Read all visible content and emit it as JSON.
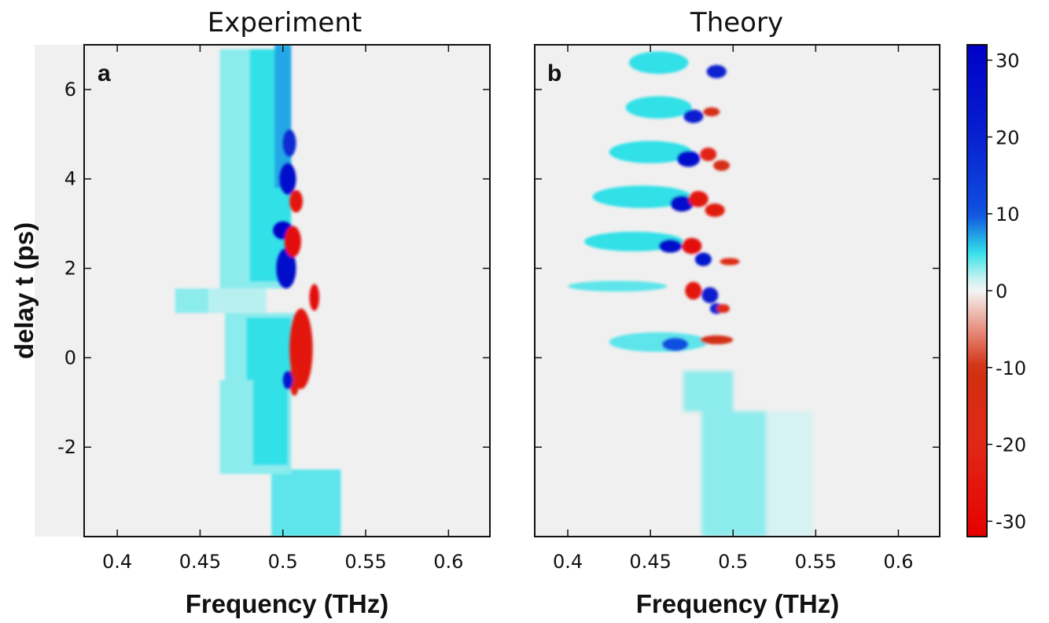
{
  "chart_data": {
    "type": "heatmap",
    "panels": [
      {
        "id": "a",
        "title": "Experiment",
        "panel_label": "a",
        "xlabel": "Frequency (THz)",
        "ylabel": "delay t (ps)",
        "xlim": [
          0.38,
          0.625
        ],
        "ylim": [
          -4,
          7
        ],
        "xticks": [
          0.4,
          0.45,
          0.5,
          0.55,
          0.6
        ],
        "xtick_labels": [
          "0.4",
          "0.45",
          "0.5",
          "0.55",
          "0.6"
        ],
        "yticks": [
          -2,
          0,
          2,
          4,
          6
        ],
        "ytick_labels": [
          "-2",
          "0",
          "2",
          "4",
          "6"
        ],
        "regions": [
          {
            "t0": -4,
            "t1": -2.7,
            "f0": 0.493,
            "f1": 0.535,
            "v": 4
          },
          {
            "t0": -2.7,
            "t1": -2.5,
            "f0": 0.493,
            "f1": 0.535,
            "v": 4
          },
          {
            "t0": -2.6,
            "t1": -0.5,
            "f0": 0.462,
            "f1": 0.505,
            "v": 3
          },
          {
            "t0": -2.4,
            "t1": -0.5,
            "f0": 0.482,
            "f1": 0.503,
            "v": 5
          },
          {
            "t0": -0.5,
            "t1": 1.0,
            "f0": 0.465,
            "f1": 0.51,
            "v": 3
          },
          {
            "t0": -0.5,
            "t1": 0.9,
            "f0": 0.478,
            "f1": 0.505,
            "v": 5
          },
          {
            "t0": 1.0,
            "t1": 1.55,
            "f0": 0.435,
            "f1": 0.455,
            "v": 3
          },
          {
            "t0": 1.0,
            "t1": 1.55,
            "f0": 0.455,
            "f1": 0.49,
            "v": 2
          },
          {
            "t0": 1.55,
            "t1": 6.9,
            "f0": 0.462,
            "f1": 0.5,
            "v": 3
          },
          {
            "t0": 1.7,
            "t1": 6.9,
            "f0": 0.48,
            "f1": 0.505,
            "v": 5
          },
          {
            "t0": 3.8,
            "t1": 7.0,
            "f0": 0.495,
            "f1": 0.505,
            "v": 7
          }
        ],
        "blobs": [
          {
            "f": 0.502,
            "t": 2.0,
            "rf": 0.006,
            "rt": 0.45,
            "v": 28
          },
          {
            "f": 0.5,
            "t": 2.85,
            "rf": 0.006,
            "rt": 0.2,
            "v": 30
          },
          {
            "f": 0.503,
            "t": 4.0,
            "rf": 0.005,
            "rt": 0.35,
            "v": 26
          },
          {
            "f": 0.504,
            "t": 4.8,
            "rf": 0.004,
            "rt": 0.3,
            "v": 18
          },
          {
            "f": 0.508,
            "t": 3.5,
            "rf": 0.004,
            "rt": 0.25,
            "v": -26
          },
          {
            "f": 0.506,
            "t": 2.6,
            "rf": 0.005,
            "rt": 0.35,
            "v": -28
          },
          {
            "f": 0.519,
            "t": 1.35,
            "rf": 0.003,
            "rt": 0.3,
            "v": -28
          },
          {
            "f": 0.511,
            "t": 0.2,
            "rf": 0.007,
            "rt": 0.9,
            "v": -26
          },
          {
            "f": 0.507,
            "t": -0.5,
            "rf": 0.003,
            "rt": 0.35,
            "v": -24
          },
          {
            "f": 0.503,
            "t": -0.5,
            "rf": 0.003,
            "rt": 0.2,
            "v": 24
          }
        ]
      },
      {
        "id": "b",
        "title": "Theory",
        "panel_label": "b",
        "xlabel": "Frequency (THz)",
        "ylabel": "",
        "xlim": [
          0.38,
          0.625
        ],
        "ylim": [
          -4,
          7
        ],
        "xticks": [
          0.4,
          0.45,
          0.5,
          0.55,
          0.6
        ],
        "xtick_labels": [
          "0.4",
          "0.45",
          "0.5",
          "0.55",
          "0.6"
        ],
        "yticks": [
          -2,
          0,
          2,
          4,
          6
        ],
        "ytick_labels": [],
        "regions": [
          {
            "t0": -4,
            "t1": -1.2,
            "f0": 0.481,
            "f1": 0.52,
            "v": 3
          },
          {
            "t0": -4,
            "t1": -1.2,
            "f0": 0.52,
            "f1": 0.548,
            "v": 1
          },
          {
            "t0": -1.2,
            "t1": -0.3,
            "f0": 0.47,
            "f1": 0.5,
            "v": 3
          }
        ],
        "blobs": [
          {
            "f": 0.455,
            "t": 6.6,
            "rf": 0.018,
            "rt": 0.25,
            "v": 5
          },
          {
            "f": 0.49,
            "t": 6.4,
            "rf": 0.006,
            "rt": 0.15,
            "v": 20
          },
          {
            "f": 0.455,
            "t": 5.6,
            "rf": 0.02,
            "rt": 0.25,
            "v": 5
          },
          {
            "f": 0.476,
            "t": 5.4,
            "rf": 0.006,
            "rt": 0.15,
            "v": 22
          },
          {
            "f": 0.487,
            "t": 5.5,
            "rf": 0.005,
            "rt": 0.1,
            "v": -14
          },
          {
            "f": 0.45,
            "t": 4.6,
            "rf": 0.025,
            "rt": 0.25,
            "v": 5
          },
          {
            "f": 0.473,
            "t": 4.45,
            "rf": 0.007,
            "rt": 0.18,
            "v": 26
          },
          {
            "f": 0.485,
            "t": 4.55,
            "rf": 0.005,
            "rt": 0.15,
            "v": -22
          },
          {
            "f": 0.493,
            "t": 4.3,
            "rf": 0.005,
            "rt": 0.12,
            "v": -14
          },
          {
            "f": 0.445,
            "t": 3.6,
            "rf": 0.03,
            "rt": 0.25,
            "v": 5
          },
          {
            "f": 0.469,
            "t": 3.45,
            "rf": 0.007,
            "rt": 0.18,
            "v": 28
          },
          {
            "f": 0.479,
            "t": 3.55,
            "rf": 0.006,
            "rt": 0.18,
            "v": -26
          },
          {
            "f": 0.489,
            "t": 3.3,
            "rf": 0.006,
            "rt": 0.15,
            "v": -24
          },
          {
            "f": 0.44,
            "t": 2.6,
            "rf": 0.03,
            "rt": 0.22,
            "v": 5
          },
          {
            "f": 0.462,
            "t": 2.5,
            "rf": 0.007,
            "rt": 0.15,
            "v": 28
          },
          {
            "f": 0.475,
            "t": 2.5,
            "rf": 0.006,
            "rt": 0.18,
            "v": -28
          },
          {
            "f": 0.482,
            "t": 2.2,
            "rf": 0.005,
            "rt": 0.15,
            "v": 24
          },
          {
            "f": 0.498,
            "t": 2.15,
            "rf": 0.006,
            "rt": 0.08,
            "v": -18
          },
          {
            "f": 0.43,
            "t": 1.6,
            "rf": 0.03,
            "rt": 0.12,
            "v": 4
          },
          {
            "f": 0.476,
            "t": 1.5,
            "rf": 0.005,
            "rt": 0.2,
            "v": -26
          },
          {
            "f": 0.486,
            "t": 1.4,
            "rf": 0.005,
            "rt": 0.18,
            "v": 22
          },
          {
            "f": 0.49,
            "t": 1.1,
            "rf": 0.004,
            "rt": 0.12,
            "v": 20
          },
          {
            "f": 0.494,
            "t": 1.1,
            "rf": 0.004,
            "rt": 0.1,
            "v": -18
          },
          {
            "f": 0.455,
            "t": 0.35,
            "rf": 0.03,
            "rt": 0.22,
            "v": 4
          },
          {
            "f": 0.465,
            "t": 0.3,
            "rf": 0.008,
            "rt": 0.15,
            "v": 10
          },
          {
            "f": 0.49,
            "t": 0.4,
            "rf": 0.01,
            "rt": 0.1,
            "v": -12
          }
        ]
      }
    ],
    "colorbar": {
      "range": [
        -32,
        32
      ],
      "ticks": [
        30,
        20,
        10,
        0,
        -10,
        -20,
        -30
      ],
      "tick_labels": [
        "30",
        "20",
        "10",
        "0",
        "-10",
        "-20",
        "-30"
      ]
    },
    "colormap": {
      "background": "#f0f0f0",
      "stops": [
        {
          "v": -32,
          "color": "#e60000"
        },
        {
          "v": -20,
          "color": "#e02818"
        },
        {
          "v": -10,
          "color": "#d03010"
        },
        {
          "v": -5,
          "color": "#e89080"
        },
        {
          "v": 0,
          "color": "#f4f4f4"
        },
        {
          "v": 2,
          "color": "#b8f0f0"
        },
        {
          "v": 5,
          "color": "#30e0e8"
        },
        {
          "v": 10,
          "color": "#1050e0"
        },
        {
          "v": 20,
          "color": "#0820d0"
        },
        {
          "v": 32,
          "color": "#0000c8"
        }
      ]
    }
  }
}
